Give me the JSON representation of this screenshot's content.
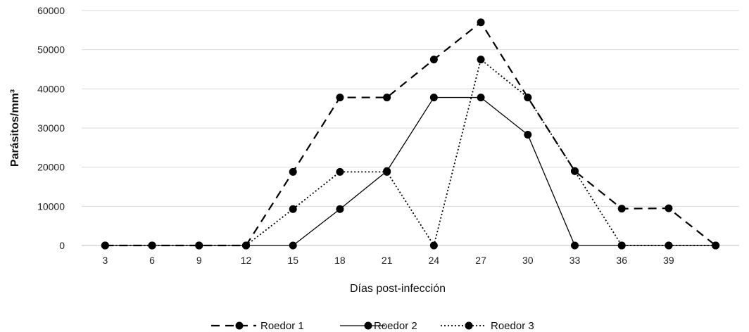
{
  "chart_data": {
    "type": "line",
    "title": "",
    "xlabel": "Días post-infección",
    "ylabel": "Parásitos/mm³",
    "categories": [
      "3",
      "6",
      "9",
      "12",
      "15",
      "18",
      "21",
      "24",
      "27",
      "30",
      "33",
      "36",
      "39",
      ""
    ],
    "ylim": [
      0,
      60000
    ],
    "yticks": [
      "0",
      "10000",
      "20000",
      "30000",
      "40000",
      "50000",
      "60000"
    ],
    "grid": "horizontal",
    "legend_position": "bottom",
    "series": [
      {
        "name": "Roedor 1",
        "style": "dashed",
        "color": "#000000",
        "values": [
          0,
          0,
          0,
          0,
          18800,
          37800,
          37800,
          47500,
          57000,
          37800,
          19000,
          9400,
          9500,
          0
        ]
      },
      {
        "name": "Roedor 2",
        "style": "solid",
        "color": "#000000",
        "values": [
          0,
          0,
          0,
          0,
          0,
          9300,
          19000,
          37800,
          37800,
          28300,
          0,
          0,
          0,
          0
        ]
      },
      {
        "name": "Roedor 3",
        "style": "dotted",
        "color": "#000000",
        "values": [
          0,
          0,
          0,
          0,
          9300,
          18800,
          18800,
          0,
          47500,
          37800,
          19000,
          0,
          0,
          0
        ]
      }
    ]
  }
}
